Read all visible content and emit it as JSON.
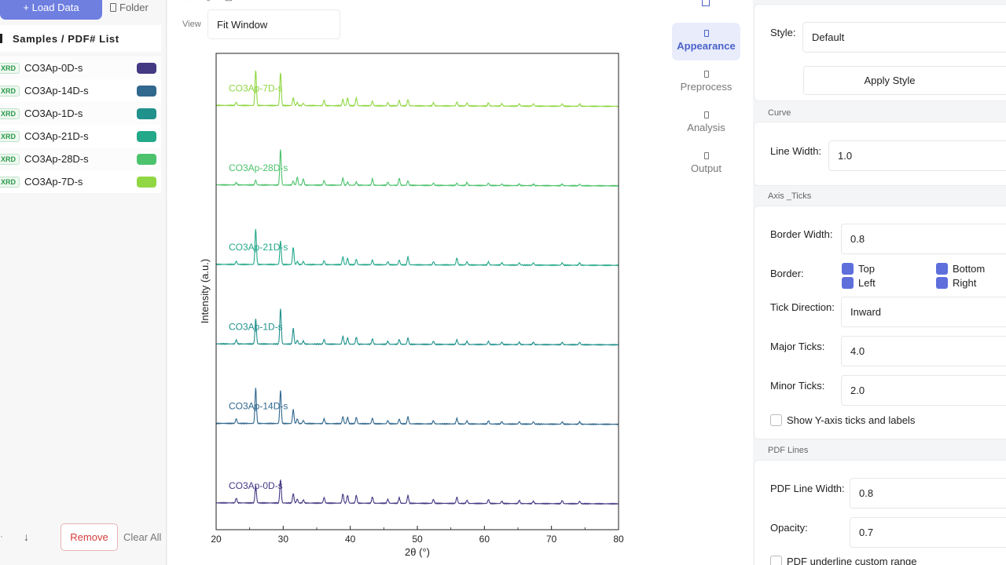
{
  "left_panel": {
    "load_button": "+ Load Data",
    "folder_button": "Folder",
    "list_title": "Samples / PDF# List",
    "samples": [
      {
        "tag": "XRD",
        "name": "CO3Ap-0D-s",
        "color": "#443983"
      },
      {
        "tag": "XRD",
        "name": "CO3Ap-14D-s",
        "color": "#31688e"
      },
      {
        "tag": "XRD",
        "name": "CO3Ap-1D-s",
        "color": "#21918c"
      },
      {
        "tag": "XRD",
        "name": "CO3Ap-21D-s",
        "color": "#24a88a"
      },
      {
        "tag": "XRD",
        "name": "CO3Ap-28D-s",
        "color": "#4cc26c"
      },
      {
        "tag": "XRD",
        "name": "CO3Ap-7D-s",
        "color": "#90d743"
      }
    ],
    "down_button": "↓",
    "remove_button": "Remove",
    "clear_button": "Clear All"
  },
  "center": {
    "view_label": "View",
    "view_value": "Fit Window"
  },
  "tabs": [
    {
      "label": "Appearance",
      "active": true
    },
    {
      "label": "Preprocess",
      "active": false
    },
    {
      "label": "Analysis",
      "active": false
    },
    {
      "label": "Output",
      "active": false
    }
  ],
  "settings": {
    "style_label": "Style:",
    "style_value": "Default",
    "apply_style": "Apply Style",
    "curve_section": "Curve",
    "line_width_label": "Line Width:",
    "line_width_value": "1.0",
    "axis_section": "Axis _Ticks",
    "border_width_label": "Border Width:",
    "border_width_value": "0.8",
    "border_label": "Border:",
    "border_top": "Top",
    "border_bottom": "Bottom",
    "border_left": "Left",
    "border_right": "Right",
    "tick_direction_label": "Tick Direction:",
    "tick_direction_value": "Inward",
    "major_ticks_label": "Major Ticks:",
    "major_ticks_value": "4.0",
    "minor_ticks_label": "Minor Ticks:",
    "minor_ticks_value": "2.0",
    "show_y_label": "Show Y-axis ticks and labels",
    "pdf_section": "PDF Lines",
    "pdf_line_width_label": "PDF Line Width:",
    "pdf_line_width_value": "0.8",
    "opacity_label": "Opacity:",
    "opacity_value": "0.7",
    "pdf_underline_label": "PDF underline custom range"
  },
  "chart_data": {
    "type": "line",
    "xlabel": "2θ (°)",
    "ylabel": "Intensity (a.u.)",
    "xlim": [
      20,
      80
    ],
    "xticks": [
      20,
      30,
      40,
      50,
      60,
      70,
      80
    ],
    "grid": false,
    "legend": "none (inline labels)",
    "peaks_2theta": [
      23.0,
      25.9,
      29.6,
      31.5,
      32.1,
      33.0,
      36.1,
      38.9,
      39.6,
      40.9,
      43.3,
      45.6,
      47.3,
      48.6,
      52.4,
      55.9,
      57.4,
      60.6,
      62.6,
      65.2,
      67.3,
      71.6,
      74.2
    ],
    "series": [
      {
        "name": "CO3Ap-0D-s",
        "color": "#443983",
        "peak_heights": [
          6,
          22,
          30,
          12,
          5,
          4,
          7,
          12,
          10,
          10,
          8,
          5,
          7,
          10,
          5,
          8,
          4,
          5,
          3,
          4,
          3,
          4,
          3
        ]
      },
      {
        "name": "CO3Ap-14D-s",
        "color": "#31688e",
        "peak_heights": [
          6,
          45,
          42,
          18,
          6,
          4,
          6,
          9,
          8,
          8,
          7,
          4,
          6,
          9,
          4,
          7,
          4,
          4,
          3,
          3,
          3,
          3,
          3
        ]
      },
      {
        "name": "CO3Ap-1D-s",
        "color": "#21918c",
        "peak_heights": [
          5,
          32,
          45,
          20,
          5,
          4,
          6,
          10,
          8,
          9,
          7,
          4,
          6,
          8,
          4,
          6,
          4,
          4,
          3,
          3,
          3,
          3,
          3
        ]
      },
      {
        "name": "CO3Ap-21D-s",
        "color": "#24a88a",
        "peak_heights": [
          4,
          45,
          30,
          22,
          4,
          4,
          5,
          10,
          8,
          7,
          6,
          4,
          6,
          10,
          4,
          9,
          4,
          4,
          3,
          3,
          3,
          3,
          3
        ]
      },
      {
        "name": "CO3Ap-28D-s",
        "color": "#4cc26c",
        "peak_heights": [
          3,
          6,
          45,
          5,
          10,
          8,
          6,
          9,
          4,
          4,
          8,
          4,
          9,
          6,
          3,
          3,
          4,
          3,
          2,
          2,
          2,
          2,
          2
        ]
      },
      {
        "name": "CO3Ap-7D-s",
        "color": "#90d743",
        "peak_heights": [
          4,
          45,
          42,
          10,
          4,
          3,
          7,
          8,
          10,
          10,
          6,
          4,
          7,
          8,
          4,
          5,
          4,
          4,
          3,
          3,
          3,
          3,
          3
        ]
      }
    ]
  }
}
